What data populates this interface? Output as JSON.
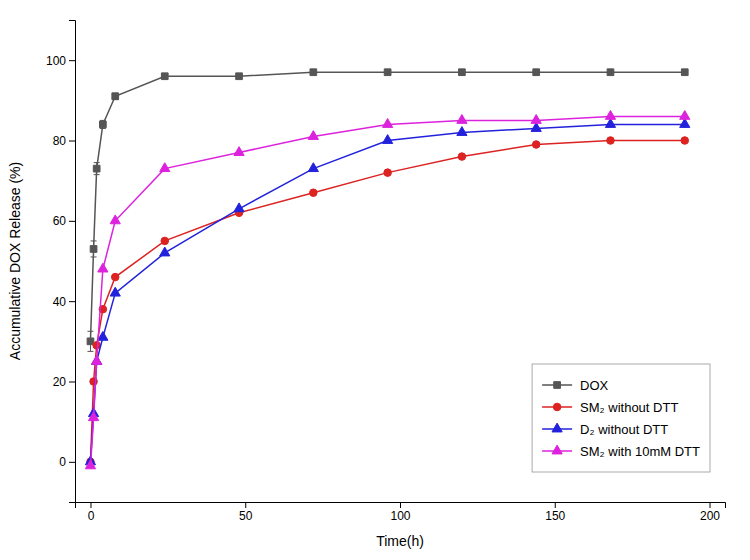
{
  "chart_data": {
    "type": "line",
    "xlabel": "Time(h)",
    "ylabel": "Accumulative DOX Release (%)",
    "x": [
      0,
      1,
      2,
      4,
      8,
      24,
      48,
      72,
      96,
      120,
      144,
      168,
      192
    ],
    "xlim": [
      -5,
      205
    ],
    "ylim": [
      -10,
      110
    ],
    "xticks": [
      0,
      50,
      100,
      150,
      200
    ],
    "yticks": [
      0,
      20,
      40,
      60,
      80,
      100
    ],
    "grid": false,
    "legend": "lower right",
    "series": [
      {
        "name": "DOX",
        "color": "#555555",
        "marker": "square",
        "values": [
          30,
          53,
          73,
          84,
          91,
          96,
          96,
          97,
          97,
          97,
          97,
          97,
          97
        ],
        "errors": [
          2.5,
          2.0,
          1.5,
          1.0,
          0.8,
          0.5,
          0.4,
          0.3,
          0.3,
          0.3,
          0.3,
          0.3,
          0.3
        ]
      },
      {
        "name": "SM₂ without DTT",
        "color": "#dd2222",
        "marker": "circle",
        "values": [
          0,
          20,
          29,
          38,
          46,
          55,
          62,
          67,
          72,
          76,
          79,
          80,
          80
        ]
      },
      {
        "name": "D₂ without DTT",
        "color": "#2222dd",
        "marker": "triangle",
        "values": [
          0,
          12,
          25,
          31,
          42,
          52,
          63,
          73,
          80,
          82,
          83,
          84,
          84
        ]
      },
      {
        "name": "SM₂ with 10mM DTT",
        "color": "#dd22dd",
        "marker": "triangle",
        "values": [
          -1,
          11,
          25,
          48,
          60,
          73,
          77,
          81,
          84,
          85,
          85,
          86,
          86
        ]
      }
    ]
  }
}
